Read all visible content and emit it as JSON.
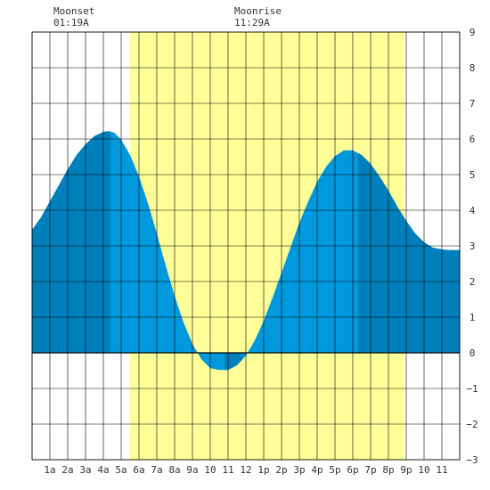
{
  "moon": {
    "set_label": "Moonset",
    "set_time": "01:19A",
    "rise_label": "Moonrise",
    "rise_time": "11:29A"
  },
  "chart_data": {
    "type": "area",
    "title": "",
    "xlabel": "",
    "ylabel": "",
    "x_ticks": [
      {
        "hour": 1,
        "label": "1a"
      },
      {
        "hour": 2,
        "label": "2a"
      },
      {
        "hour": 3,
        "label": "3a"
      },
      {
        "hour": 4,
        "label": "4a"
      },
      {
        "hour": 5,
        "label": "5a"
      },
      {
        "hour": 6,
        "label": "6a"
      },
      {
        "hour": 7,
        "label": "7a"
      },
      {
        "hour": 8,
        "label": "8a"
      },
      {
        "hour": 9,
        "label": "9a"
      },
      {
        "hour": 10,
        "label": "10"
      },
      {
        "hour": 11,
        "label": "11"
      },
      {
        "hour": 12,
        "label": "12"
      },
      {
        "hour": 13,
        "label": "1p"
      },
      {
        "hour": 14,
        "label": "2p"
      },
      {
        "hour": 15,
        "label": "3p"
      },
      {
        "hour": 16,
        "label": "4p"
      },
      {
        "hour": 17,
        "label": "5p"
      },
      {
        "hour": 18,
        "label": "6p"
      },
      {
        "hour": 19,
        "label": "7p"
      },
      {
        "hour": 20,
        "label": "8p"
      },
      {
        "hour": 21,
        "label": "9p"
      },
      {
        "hour": 22,
        "label": "10"
      },
      {
        "hour": 23,
        "label": "11"
      }
    ],
    "y_ticks": [
      9,
      8,
      7,
      6,
      5,
      4,
      3,
      2,
      1,
      0,
      -1,
      -2,
      -3
    ],
    "xlim": [
      0,
      24
    ],
    "ylim": [
      -3,
      9
    ],
    "grid": true,
    "daylight": {
      "start_hour": 5.5,
      "end_hour": 20.9
    },
    "series": [
      {
        "points": [
          [
            0,
            3.45
          ],
          [
            0.5,
            3.8
          ],
          [
            1,
            4.25
          ],
          [
            1.5,
            4.7
          ],
          [
            2,
            5.15
          ],
          [
            2.5,
            5.55
          ],
          [
            3,
            5.85
          ],
          [
            3.5,
            6.08
          ],
          [
            4,
            6.2
          ],
          [
            4.3,
            6.22
          ],
          [
            4.6,
            6.18
          ],
          [
            5,
            5.98
          ],
          [
            5.5,
            5.55
          ],
          [
            6,
            4.95
          ],
          [
            6.5,
            4.2
          ],
          [
            7,
            3.35
          ],
          [
            7.5,
            2.45
          ],
          [
            8,
            1.6
          ],
          [
            8.5,
            0.85
          ],
          [
            9,
            0.25
          ],
          [
            9.5,
            -0.18
          ],
          [
            10,
            -0.43
          ],
          [
            10.5,
            -0.48
          ],
          [
            11,
            -0.48
          ],
          [
            11.5,
            -0.35
          ],
          [
            12,
            -0.08
          ],
          [
            12.5,
            0.35
          ],
          [
            13,
            0.9
          ],
          [
            13.5,
            1.55
          ],
          [
            14,
            2.25
          ],
          [
            14.5,
            2.95
          ],
          [
            15,
            3.65
          ],
          [
            15.5,
            4.25
          ],
          [
            16,
            4.8
          ],
          [
            16.5,
            5.22
          ],
          [
            17,
            5.52
          ],
          [
            17.5,
            5.68
          ],
          [
            18,
            5.68
          ],
          [
            18.5,
            5.55
          ],
          [
            19,
            5.3
          ],
          [
            19.5,
            4.95
          ],
          [
            20,
            4.55
          ],
          [
            20.5,
            4.1
          ],
          [
            21,
            3.7
          ],
          [
            21.5,
            3.35
          ],
          [
            22,
            3.1
          ],
          [
            22.5,
            2.95
          ],
          [
            23,
            2.9
          ],
          [
            23.5,
            2.88
          ],
          [
            24,
            2.88
          ]
        ]
      }
    ],
    "highlight_bands": [
      {
        "start_hour": 0,
        "end_hour": 4.4
      },
      {
        "start_hour": 10.8,
        "end_hour": 11.8
      },
      {
        "start_hour": 18.3,
        "end_hour": 24
      }
    ],
    "colors": {
      "daylight": "#ffff99",
      "water": "#0099dd",
      "water_dark": "#0080bb",
      "grid": "#000000",
      "zero_line": "#000000"
    }
  }
}
